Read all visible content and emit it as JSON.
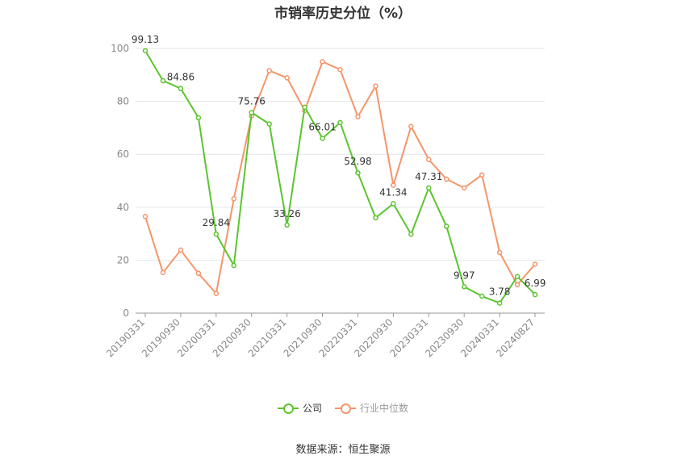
{
  "chart_data": {
    "type": "line",
    "title": "市销率历史分位（%）",
    "ylim": [
      0,
      100
    ],
    "yticks": [
      0,
      20,
      40,
      60,
      80,
      100
    ],
    "x_tick_labels": [
      "20190331",
      "20190930",
      "20200331",
      "20200930",
      "20210331",
      "20210930",
      "20220331",
      "20220930",
      "20230331",
      "20230930",
      "20240331",
      "20240827"
    ],
    "grid": true,
    "legend_position": "bottom",
    "series": [
      {
        "name": "公司",
        "color": "#5cc42e",
        "values": [
          99.13,
          87.8,
          84.86,
          73.8,
          29.84,
          18.0,
          75.76,
          71.5,
          33.26,
          77.8,
          66.01,
          72.0,
          52.98,
          36.0,
          41.34,
          29.8,
          47.31,
          32.8,
          9.97,
          6.4,
          3.78,
          13.8,
          6.99
        ],
        "data_labels": {
          "0": "99.13",
          "2": "84.86",
          "4": "29.84",
          "6": "75.76",
          "8": "33.26",
          "10": "66.01",
          "12": "52.98",
          "14": "41.34",
          "16": "47.31",
          "18": "9.97",
          "20": "3.78",
          "22": "6.99"
        }
      },
      {
        "name": "行业中位数",
        "color": "#f5956a",
        "values": [
          36.5,
          15.3,
          23.8,
          15.0,
          7.4,
          43.2,
          74.5,
          91.6,
          88.9,
          76.5,
          95.0,
          92.0,
          74.2,
          85.8,
          48.3,
          70.5,
          58.0,
          50.6,
          47.3,
          52.2,
          22.9,
          10.7,
          18.5
        ]
      }
    ]
  },
  "source": "数据来源：恒生聚源"
}
